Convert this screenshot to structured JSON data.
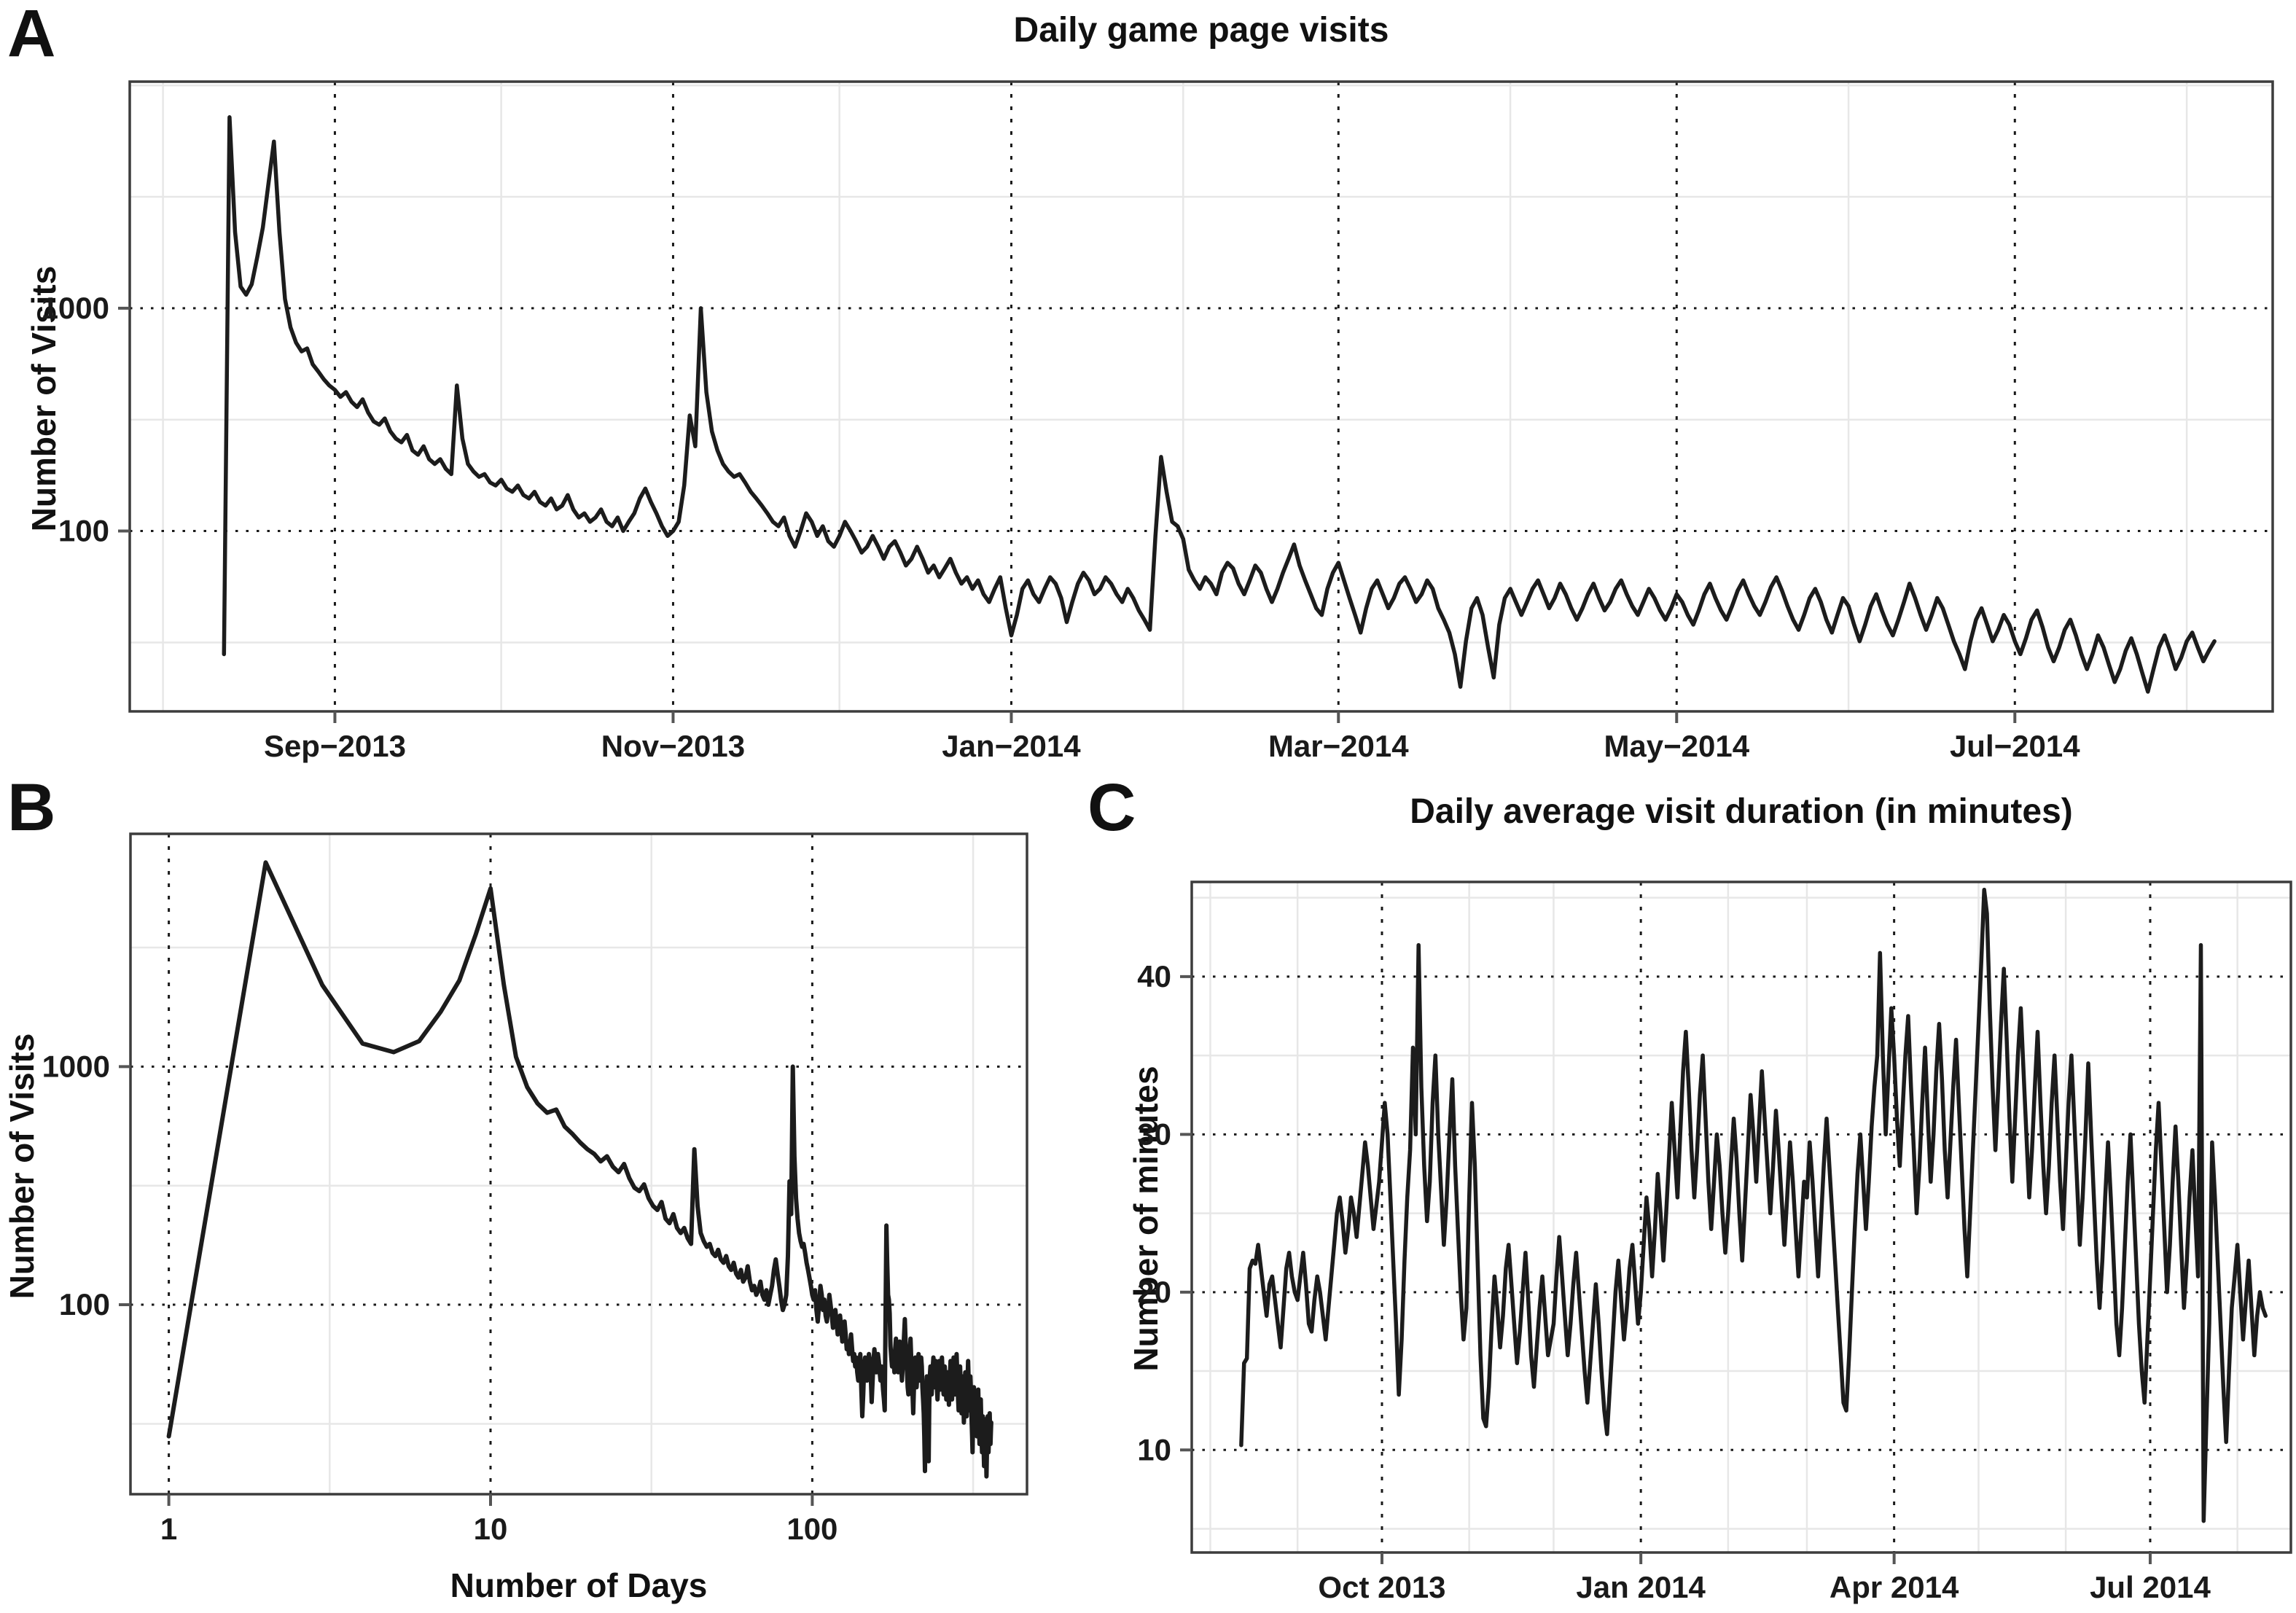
{
  "figure": {
    "background": "#ffffff",
    "colors": {
      "line": "#1c1c1c",
      "grid_major": "#1a1a1a",
      "grid_minor": "#e7e7e7",
      "border": "#3c3c3c",
      "tick_mark": "#555555",
      "text": "#1a1a1a"
    }
  },
  "chart_data": [
    {
      "id": "panel_a",
      "panel_label": "A",
      "type": "line",
      "title": "Daily game page visits",
      "ylabel": "Number of Visits",
      "xlabel": "",
      "yscale": "log",
      "xscale": "linear-daily",
      "ylim": [
        15.5,
        10400
      ],
      "xlim_index": [
        -17,
        369.5
      ],
      "yticks": [
        {
          "value": 1000,
          "label": "1000"
        },
        {
          "value": 100,
          "label": "100"
        }
      ],
      "y_minor": [
        31.6,
        316,
        3162,
        10000
      ],
      "xticks": [
        {
          "index": 20,
          "label": "Sep−2013"
        },
        {
          "index": 81,
          "label": "Nov−2013"
        },
        {
          "index": 142,
          "label": "Jan−2014"
        },
        {
          "index": 201,
          "label": "Mar−2014"
        },
        {
          "index": 262,
          "label": "May−2014"
        },
        {
          "index": 323,
          "label": "Jul−2014"
        }
      ],
      "x_minor_index": [
        -11,
        50,
        111,
        173,
        232,
        293,
        354
      ],
      "grid": "major-dotted, minor-light",
      "values": [
        28,
        7200,
        2200,
        1250,
        1150,
        1280,
        1700,
        2300,
        3600,
        5600,
        2200,
        1100,
        820,
        700,
        640,
        660,
        560,
        520,
        480,
        450,
        430,
        400,
        420,
        380,
        360,
        390,
        340,
        310,
        300,
        320,
        280,
        260,
        250,
        270,
        230,
        220,
        240,
        210,
        200,
        210,
        190,
        180,
        450,
        260,
        200,
        185,
        175,
        180,
        165,
        160,
        170,
        155,
        150,
        160,
        145,
        140,
        150,
        135,
        130,
        140,
        125,
        130,
        145,
        125,
        115,
        120,
        110,
        115,
        125,
        110,
        105,
        115,
        100,
        110,
        120,
        140,
        155,
        135,
        120,
        105,
        95,
        100,
        110,
        160,
        330,
        240,
        1000,
        420,
        280,
        230,
        200,
        185,
        175,
        180,
        165,
        150,
        140,
        130,
        120,
        110,
        105,
        115,
        95,
        85,
        100,
        120,
        110,
        95,
        105,
        90,
        85,
        95,
        110,
        100,
        90,
        80,
        85,
        95,
        85,
        75,
        85,
        90,
        80,
        70,
        75,
        85,
        75,
        65,
        70,
        62,
        68,
        75,
        65,
        58,
        62,
        55,
        60,
        52,
        48,
        55,
        62,
        45,
        34,
        42,
        55,
        60,
        52,
        48,
        55,
        62,
        58,
        50,
        39,
        48,
        58,
        65,
        60,
        52,
        55,
        62,
        58,
        52,
        48,
        55,
        50,
        44,
        40,
        36,
        95,
        215,
        150,
        110,
        105,
        92,
        67,
        60,
        55,
        62,
        58,
        52,
        65,
        72,
        68,
        58,
        52,
        60,
        70,
        65,
        55,
        48,
        55,
        65,
        75,
        87,
        70,
        60,
        52,
        45,
        42,
        55,
        65,
        72,
        60,
        50,
        42,
        35,
        45,
        55,
        60,
        52,
        45,
        50,
        58,
        62,
        55,
        48,
        52,
        60,
        55,
        45,
        40,
        35,
        28,
        20,
        32,
        45,
        50,
        42,
        30,
        22,
        38,
        50,
        55,
        48,
        42,
        48,
        55,
        60,
        52,
        45,
        50,
        58,
        52,
        45,
        40,
        45,
        52,
        58,
        50,
        44,
        48,
        55,
        60,
        52,
        46,
        42,
        48,
        55,
        50,
        44,
        40,
        45,
        52,
        48,
        42,
        38,
        44,
        52,
        58,
        50,
        44,
        40,
        46,
        54,
        60,
        52,
        46,
        42,
        48,
        56,
        62,
        54,
        46,
        40,
        36,
        42,
        50,
        55,
        48,
        40,
        35,
        42,
        50,
        46,
        38,
        32,
        38,
        46,
        52,
        44,
        38,
        34,
        40,
        48,
        58,
        50,
        42,
        36,
        42,
        50,
        45,
        38,
        32,
        28,
        24,
        32,
        40,
        45,
        38,
        32,
        36,
        42,
        38,
        32,
        28,
        33,
        40,
        44,
        37,
        30,
        26,
        30,
        36,
        40,
        34,
        28,
        24,
        28,
        34,
        30,
        25,
        21,
        24,
        29,
        33,
        28,
        23,
        19,
        24,
        30,
        34,
        29,
        24,
        27,
        32,
        35,
        30,
        26,
        29,
        32
      ]
    },
    {
      "id": "panel_b",
      "panel_label": "B",
      "type": "line",
      "title": "",
      "ylabel": "Number of Visits",
      "xlabel": "Number of Days",
      "yscale": "log",
      "xscale": "log",
      "ylim": [
        16,
        9500
      ],
      "xlim": [
        0.76,
        465
      ],
      "yticks": [
        {
          "value": 1000,
          "label": "1000"
        },
        {
          "value": 100,
          "label": "100"
        }
      ],
      "y_minor": [
        31.6,
        316,
        3162
      ],
      "xticks": [
        {
          "value": 1,
          "label": "1"
        },
        {
          "value": 10,
          "label": "10"
        },
        {
          "value": 100,
          "label": "100"
        }
      ],
      "x_minor": [
        3.162,
        31.62,
        316.2
      ],
      "grid": "major-dotted, minor-light",
      "values_from": "panel_a",
      "note": "Same daily visit series as panel A plotted against day number since first day (x = day index starting at 1)."
    },
    {
      "id": "panel_c",
      "panel_label": "C",
      "type": "line",
      "title": "Daily average visit duration (in minutes)",
      "ylabel": "Number of minutes",
      "xlabel": "",
      "yscale": "linear",
      "xscale": "linear-daily",
      "ylim": [
        3.5,
        46
      ],
      "xlim_index": [
        -17.6,
        373
      ],
      "yticks": [
        {
          "value": 40,
          "label": "40"
        },
        {
          "value": 30,
          "label": "30"
        },
        {
          "value": 20,
          "label": "20"
        },
        {
          "value": 10,
          "label": "10"
        }
      ],
      "y_minor": [
        5,
        15,
        25,
        35,
        45
      ],
      "xticks": [
        {
          "index": 50,
          "label": "Oct 2013"
        },
        {
          "index": 142,
          "label": "Jan 2014"
        },
        {
          "index": 232,
          "label": "Apr 2014"
        },
        {
          "index": 323,
          "label": "Jul 2014"
        }
      ],
      "x_minor_index": [
        -11,
        20,
        81,
        111,
        173,
        201,
        262,
        293,
        354
      ],
      "grid": "major-dotted, minor-light",
      "values": [
        10.3,
        15.5,
        15.8,
        21.5,
        22,
        21.8,
        23,
        21.5,
        20,
        18.5,
        20.5,
        21,
        19.5,
        18,
        16.5,
        19,
        21.5,
        22.5,
        21,
        20,
        19.5,
        21,
        22.5,
        20.5,
        18,
        17.5,
        19.5,
        21,
        20,
        18.5,
        17,
        19,
        21,
        23,
        25,
        26,
        24.5,
        22.5,
        24,
        26,
        25,
        23.5,
        25.5,
        27.5,
        29.5,
        28,
        26,
        24,
        25.5,
        27,
        29.5,
        32,
        30,
        26,
        22,
        18,
        13.5,
        17,
        22,
        26,
        29,
        35.5,
        30,
        42,
        33,
        28,
        24.5,
        27,
        32,
        35,
        30,
        26.5,
        23,
        26,
        30,
        33.5,
        28,
        24,
        20,
        17,
        19,
        26,
        32,
        28,
        22,
        16,
        12,
        11.5,
        14,
        18,
        21,
        19,
        16.5,
        18.5,
        21.5,
        23,
        20.5,
        18,
        15.5,
        17.5,
        20,
        22.5,
        19.5,
        16,
        14,
        16.5,
        19,
        21,
        18.5,
        16,
        17,
        18,
        21,
        23.5,
        21,
        18.5,
        16,
        18,
        20.5,
        22.5,
        20,
        17.5,
        15,
        13,
        15.5,
        18,
        20.5,
        18,
        15,
        12.5,
        11,
        14,
        17,
        20,
        22,
        19.5,
        17,
        19,
        21.5,
        23,
        20.5,
        18,
        20,
        23,
        26,
        24,
        21,
        24,
        27.5,
        25,
        22,
        25,
        28.5,
        32,
        29,
        26,
        30,
        34,
        36.5,
        33,
        29,
        26,
        29,
        32.5,
        35,
        31,
        27,
        24,
        27,
        30,
        28,
        25,
        22.5,
        25,
        28,
        31,
        28.5,
        25,
        22,
        25.5,
        29,
        32.5,
        30,
        27,
        30.5,
        34,
        31,
        28,
        25,
        28,
        31.5,
        29,
        26,
        23,
        26,
        29.5,
        27,
        24,
        21,
        24,
        27,
        26,
        29.5,
        27,
        24,
        21,
        24.5,
        28,
        31,
        28,
        25,
        22,
        19,
        16,
        13,
        12.5,
        16,
        20,
        24,
        27.5,
        30,
        27,
        24,
        27,
        30.5,
        33,
        35,
        41.5,
        35,
        30,
        34,
        38,
        35,
        31,
        28,
        31.5,
        35,
        37.5,
        33,
        29,
        25,
        28,
        32,
        35.5,
        31,
        27,
        30,
        34,
        37,
        33.5,
        29,
        26,
        29.5,
        33,
        36,
        32,
        28,
        24,
        21,
        25,
        29,
        33,
        37,
        41,
        45.5,
        44,
        38,
        33,
        29,
        33,
        37,
        40.5,
        36,
        31,
        27,
        31,
        35,
        38,
        34,
        30,
        26,
        29,
        33,
        36.5,
        32,
        28,
        25,
        28,
        32,
        35,
        31,
        27,
        24,
        28,
        32,
        35,
        31,
        27,
        23,
        26,
        30,
        34.5,
        30,
        26,
        22,
        19,
        22,
        26,
        29.5,
        26,
        22,
        18,
        16,
        19,
        23,
        27,
        30,
        26,
        22,
        18,
        15,
        13,
        17,
        21,
        25,
        29,
        32,
        28,
        24,
        20,
        23,
        27,
        30.5,
        27,
        23,
        19,
        22,
        26,
        29,
        25,
        21,
        42,
        5.5,
        12,
        18,
        29.5,
        26,
        22,
        18,
        14,
        10.5,
        15,
        19,
        21,
        23,
        20,
        17,
        19.5,
        22,
        19,
        16,
        18.5,
        20,
        19,
        18.5
      ]
    }
  ]
}
